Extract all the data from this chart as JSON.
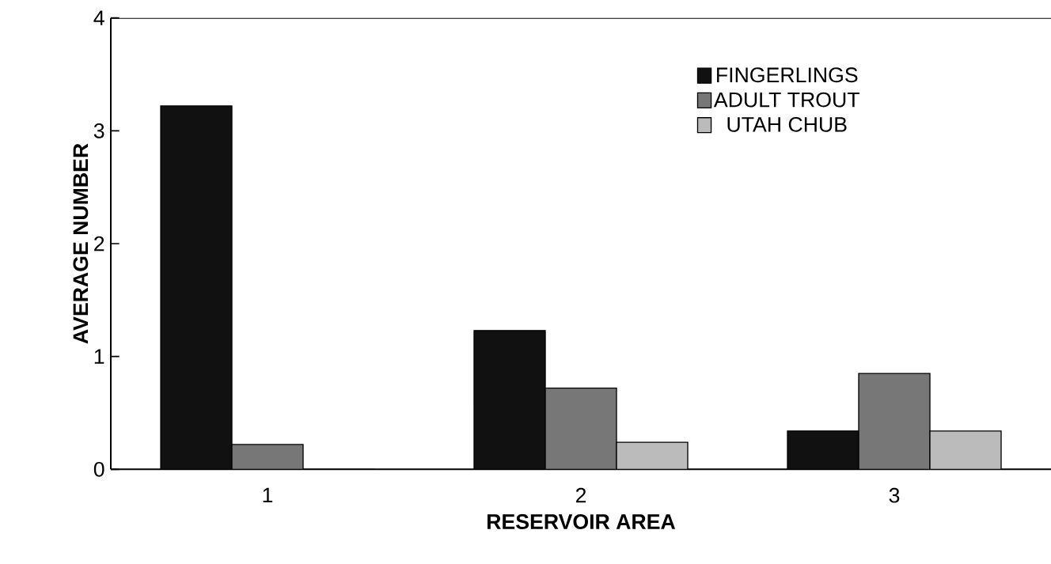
{
  "chart_data": {
    "type": "bar",
    "xlabel": "RESERVOIR AREA",
    "ylabel": "AVERAGE  NUMBER",
    "categories": [
      "1",
      "2",
      "3"
    ],
    "series": [
      {
        "name": "FINGERLINGS",
        "color": "#111111",
        "values": [
          3.22,
          1.23,
          0.34
        ]
      },
      {
        "name": "ADULT TROUT",
        "color": "#777777",
        "values": [
          0.22,
          0.72,
          0.85
        ]
      },
      {
        "name": "UTAH CHUB",
        "color": "#bbbbbb",
        "values": [
          0,
          0.24,
          0.34
        ]
      }
    ],
    "ylim": [
      0,
      4
    ],
    "yticks": [
      0,
      1,
      2,
      3,
      4
    ],
    "grid": false,
    "legend": "top right"
  }
}
